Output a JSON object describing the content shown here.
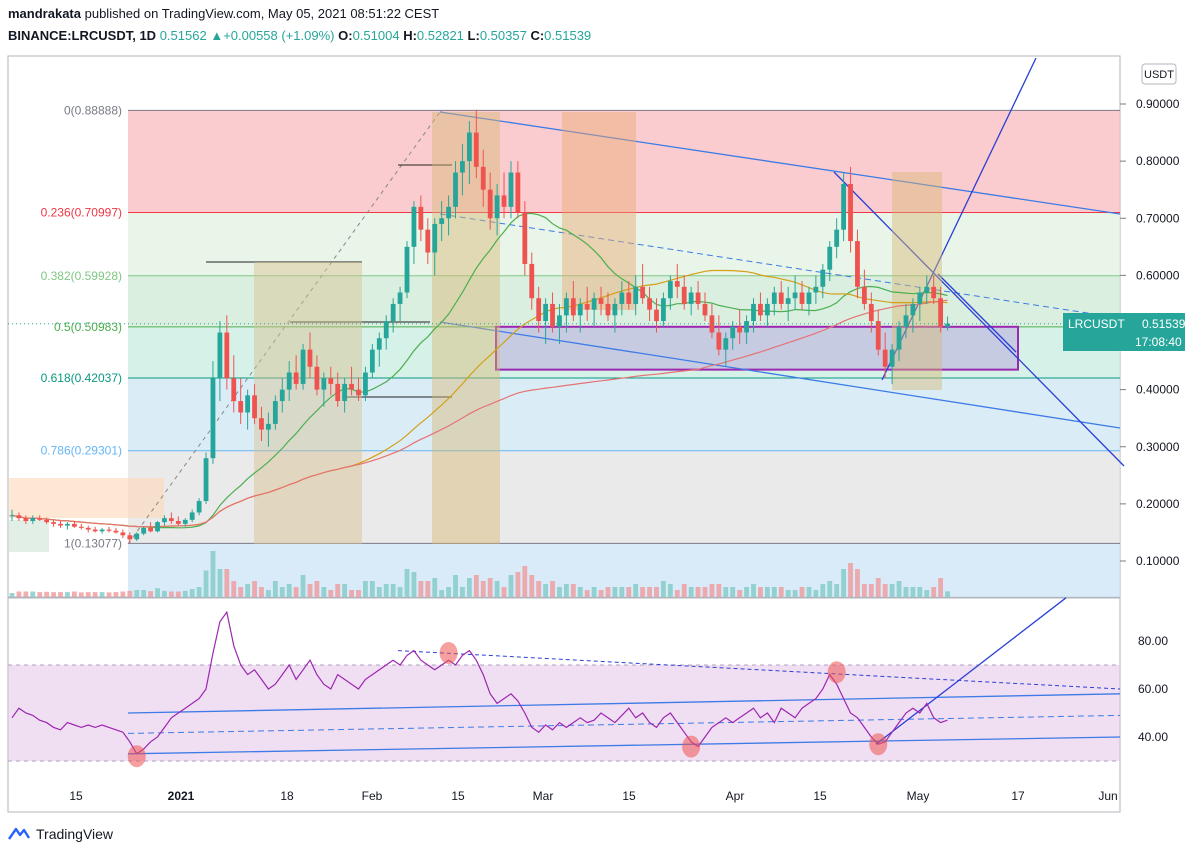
{
  "header": {
    "publisher": "mandrakata",
    "published_text": "published on TradingView.com, May 05, 2021 08:51:22 CEST",
    "symbol": "BINANCE:LRCUSDT, 1D",
    "last": "0.51562",
    "change": "+0.00558 (+1.09%)",
    "o_label": "O:",
    "o_value": "0.51004",
    "h_label": "H:",
    "h_value": "0.52821",
    "l_label": "L:",
    "l_value": "0.50357",
    "c_label": "C:",
    "c_value": "0.51539"
  },
  "price_badge": {
    "symbol": "LRCUSDT",
    "price": "0.51539",
    "countdown": "17:08:40"
  },
  "currency": "USDT",
  "footer": {
    "brand": "TradingView"
  },
  "colors": {
    "up": "#26a69a",
    "down": "#ef5350",
    "fib_red": "#f23645",
    "fib_green": "#4caf50",
    "fib_blue": "#2196f3",
    "rsi": "#9c27b0"
  },
  "chart_data": [
    {
      "type": "candlestick",
      "yaxis_ticks": [
        "0.90000",
        "0.80000",
        "0.70000",
        "0.60000",
        "0.50000",
        "0.40000",
        "0.30000",
        "0.20000",
        "0.10000"
      ],
      "ylim": [
        0.04,
        0.96
      ],
      "xaxis_ticks": [
        "15",
        "2021",
        "18",
        "Feb",
        "15",
        "Mar",
        "15",
        "Apr",
        "15",
        "May",
        "17",
        "Jun"
      ],
      "fib_levels": [
        {
          "ratio": "0",
          "price": 0.88888,
          "label": "0(0.88888)",
          "color": "#787b86"
        },
        {
          "ratio": "0.236",
          "price": 0.70997,
          "label": "0.236(0.70997)",
          "color": "#f23645"
        },
        {
          "ratio": "0.382",
          "price": 0.59928,
          "label": "0.382(0.59928)",
          "color": "#81c784"
        },
        {
          "ratio": "0.5",
          "price": 0.50983,
          "label": "0.5(0.50983)",
          "color": "#4caf50"
        },
        {
          "ratio": "0.618",
          "price": 0.42037,
          "label": "0.618(0.42037)",
          "color": "#089981"
        },
        {
          "ratio": "0.786",
          "price": 0.29301,
          "label": "0.786(0.29301)",
          "color": "#64b5f6"
        },
        {
          "ratio": "1",
          "price": 0.13077,
          "label": "1(0.13077)",
          "color": "#787b86"
        }
      ],
      "candles": [
        [
          0.18,
          0.19,
          0.17,
          0.18
        ],
        [
          0.18,
          0.185,
          0.17,
          0.175
        ],
        [
          0.175,
          0.18,
          0.165,
          0.17
        ],
        [
          0.17,
          0.18,
          0.165,
          0.175
        ],
        [
          0.175,
          0.18,
          0.17,
          0.172
        ],
        [
          0.172,
          0.176,
          0.165,
          0.168
        ],
        [
          0.168,
          0.172,
          0.16,
          0.165
        ],
        [
          0.165,
          0.17,
          0.158,
          0.162
        ],
        [
          0.162,
          0.168,
          0.155,
          0.165
        ],
        [
          0.165,
          0.17,
          0.158,
          0.16
        ],
        [
          0.16,
          0.165,
          0.155,
          0.158
        ],
        [
          0.158,
          0.162,
          0.15,
          0.155
        ],
        [
          0.155,
          0.16,
          0.15,
          0.152
        ],
        [
          0.152,
          0.158,
          0.148,
          0.155
        ],
        [
          0.155,
          0.16,
          0.15,
          0.153
        ],
        [
          0.153,
          0.158,
          0.148,
          0.15
        ],
        [
          0.15,
          0.155,
          0.14,
          0.145
        ],
        [
          0.145,
          0.15,
          0.131,
          0.138
        ],
        [
          0.138,
          0.15,
          0.135,
          0.148
        ],
        [
          0.148,
          0.16,
          0.145,
          0.158
        ],
        [
          0.158,
          0.168,
          0.15,
          0.152
        ],
        [
          0.152,
          0.17,
          0.15,
          0.168
        ],
        [
          0.168,
          0.18,
          0.162,
          0.175
        ],
        [
          0.175,
          0.185,
          0.165,
          0.17
        ],
        [
          0.17,
          0.178,
          0.162,
          0.165
        ],
        [
          0.165,
          0.175,
          0.16,
          0.172
        ],
        [
          0.172,
          0.19,
          0.168,
          0.185
        ],
        [
          0.185,
          0.21,
          0.18,
          0.205
        ],
        [
          0.205,
          0.29,
          0.2,
          0.28
        ],
        [
          0.28,
          0.45,
          0.27,
          0.42
        ],
        [
          0.42,
          0.52,
          0.38,
          0.5
        ],
        [
          0.5,
          0.53,
          0.4,
          0.42
        ],
        [
          0.42,
          0.46,
          0.36,
          0.38
        ],
        [
          0.38,
          0.42,
          0.34,
          0.36
        ],
        [
          0.36,
          0.4,
          0.33,
          0.39
        ],
        [
          0.39,
          0.41,
          0.34,
          0.35
        ],
        [
          0.35,
          0.37,
          0.31,
          0.33
        ],
        [
          0.33,
          0.36,
          0.3,
          0.34
        ],
        [
          0.34,
          0.39,
          0.33,
          0.38
        ],
        [
          0.38,
          0.42,
          0.36,
          0.4
        ],
        [
          0.4,
          0.45,
          0.38,
          0.43
        ],
        [
          0.43,
          0.46,
          0.4,
          0.41
        ],
        [
          0.41,
          0.48,
          0.4,
          0.47
        ],
        [
          0.47,
          0.5,
          0.42,
          0.44
        ],
        [
          0.44,
          0.46,
          0.39,
          0.4
        ],
        [
          0.4,
          0.43,
          0.37,
          0.42
        ],
        [
          0.42,
          0.44,
          0.39,
          0.41
        ],
        [
          0.41,
          0.43,
          0.37,
          0.38
        ],
        [
          0.38,
          0.42,
          0.36,
          0.41
        ],
        [
          0.41,
          0.44,
          0.39,
          0.4
        ],
        [
          0.4,
          0.42,
          0.38,
          0.39
        ],
        [
          0.39,
          0.44,
          0.38,
          0.43
        ],
        [
          0.43,
          0.48,
          0.42,
          0.47
        ],
        [
          0.47,
          0.5,
          0.44,
          0.49
        ],
        [
          0.49,
          0.53,
          0.47,
          0.52
        ],
        [
          0.52,
          0.56,
          0.5,
          0.55
        ],
        [
          0.55,
          0.58,
          0.52,
          0.57
        ],
        [
          0.57,
          0.66,
          0.56,
          0.65
        ],
        [
          0.65,
          0.73,
          0.62,
          0.72
        ],
        [
          0.72,
          0.74,
          0.66,
          0.68
        ],
        [
          0.68,
          0.7,
          0.62,
          0.64
        ],
        [
          0.64,
          0.7,
          0.6,
          0.69
        ],
        [
          0.69,
          0.73,
          0.66,
          0.7
        ],
        [
          0.7,
          0.74,
          0.67,
          0.72
        ],
        [
          0.72,
          0.8,
          0.7,
          0.78
        ],
        [
          0.78,
          0.83,
          0.74,
          0.8
        ],
        [
          0.8,
          0.87,
          0.76,
          0.85
        ],
        [
          0.85,
          0.89,
          0.77,
          0.79
        ],
        [
          0.79,
          0.82,
          0.72,
          0.75
        ],
        [
          0.75,
          0.78,
          0.68,
          0.7
        ],
        [
          0.7,
          0.76,
          0.67,
          0.74
        ],
        [
          0.74,
          0.78,
          0.7,
          0.72
        ],
        [
          0.72,
          0.8,
          0.7,
          0.78
        ],
        [
          0.78,
          0.8,
          0.7,
          0.71
        ],
        [
          0.71,
          0.73,
          0.6,
          0.62
        ],
        [
          0.62,
          0.64,
          0.54,
          0.56
        ],
        [
          0.56,
          0.58,
          0.5,
          0.52
        ],
        [
          0.52,
          0.56,
          0.48,
          0.55
        ],
        [
          0.55,
          0.57,
          0.5,
          0.51
        ],
        [
          0.51,
          0.55,
          0.48,
          0.53
        ],
        [
          0.53,
          0.57,
          0.5,
          0.56
        ],
        [
          0.56,
          0.59,
          0.52,
          0.53
        ],
        [
          0.53,
          0.56,
          0.5,
          0.55
        ],
        [
          0.55,
          0.58,
          0.52,
          0.54
        ],
        [
          0.54,
          0.57,
          0.51,
          0.56
        ],
        [
          0.56,
          0.58,
          0.53,
          0.55
        ],
        [
          0.55,
          0.57,
          0.52,
          0.53
        ],
        [
          0.53,
          0.56,
          0.5,
          0.55
        ],
        [
          0.55,
          0.59,
          0.53,
          0.57
        ],
        [
          0.57,
          0.59,
          0.54,
          0.55
        ],
        [
          0.55,
          0.6,
          0.53,
          0.58
        ],
        [
          0.58,
          0.62,
          0.55,
          0.56
        ],
        [
          0.56,
          0.58,
          0.52,
          0.54
        ],
        [
          0.54,
          0.56,
          0.5,
          0.52
        ],
        [
          0.52,
          0.57,
          0.51,
          0.56
        ],
        [
          0.56,
          0.6,
          0.54,
          0.59
        ],
        [
          0.59,
          0.62,
          0.56,
          0.58
        ],
        [
          0.58,
          0.6,
          0.54,
          0.55
        ],
        [
          0.55,
          0.58,
          0.53,
          0.57
        ],
        [
          0.57,
          0.59,
          0.54,
          0.55
        ],
        [
          0.55,
          0.57,
          0.52,
          0.53
        ],
        [
          0.53,
          0.55,
          0.49,
          0.5
        ],
        [
          0.5,
          0.53,
          0.46,
          0.47
        ],
        [
          0.47,
          0.5,
          0.44,
          0.49
        ],
        [
          0.49,
          0.52,
          0.47,
          0.51
        ],
        [
          0.51,
          0.54,
          0.48,
          0.5
        ],
        [
          0.5,
          0.53,
          0.48,
          0.52
        ],
        [
          0.52,
          0.56,
          0.5,
          0.55
        ],
        [
          0.55,
          0.57,
          0.52,
          0.53
        ],
        [
          0.53,
          0.56,
          0.51,
          0.55
        ],
        [
          0.55,
          0.58,
          0.53,
          0.57
        ],
        [
          0.57,
          0.59,
          0.54,
          0.55
        ],
        [
          0.55,
          0.58,
          0.52,
          0.56
        ],
        [
          0.56,
          0.6,
          0.54,
          0.57
        ],
        [
          0.57,
          0.59,
          0.54,
          0.55
        ],
        [
          0.55,
          0.58,
          0.53,
          0.57
        ],
        [
          0.57,
          0.6,
          0.55,
          0.58
        ],
        [
          0.58,
          0.62,
          0.56,
          0.61
        ],
        [
          0.61,
          0.66,
          0.59,
          0.65
        ],
        [
          0.65,
          0.7,
          0.63,
          0.68
        ],
        [
          0.68,
          0.78,
          0.66,
          0.76
        ],
        [
          0.76,
          0.79,
          0.64,
          0.66
        ],
        [
          0.66,
          0.68,
          0.56,
          0.58
        ],
        [
          0.58,
          0.61,
          0.54,
          0.55
        ],
        [
          0.55,
          0.57,
          0.5,
          0.52
        ],
        [
          0.52,
          0.54,
          0.46,
          0.47
        ],
        [
          0.47,
          0.5,
          0.42,
          0.44
        ],
        [
          0.44,
          0.48,
          0.41,
          0.47
        ],
        [
          0.47,
          0.52,
          0.45,
          0.51
        ],
        [
          0.51,
          0.55,
          0.49,
          0.53
        ],
        [
          0.53,
          0.56,
          0.5,
          0.55
        ],
        [
          0.55,
          0.58,
          0.52,
          0.57
        ],
        [
          0.57,
          0.6,
          0.55,
          0.58
        ],
        [
          0.58,
          0.6,
          0.55,
          0.56
        ],
        [
          0.56,
          0.58,
          0.5,
          0.51
        ],
        [
          0.51,
          0.528,
          0.5036,
          0.5154
        ]
      ],
      "horizontal_box": {
        "top": 0.51,
        "bottom": 0.435,
        "label": ""
      },
      "price_line": 0.51539
    },
    {
      "type": "line",
      "name": "RSI",
      "yaxis_ticks": [
        "80.00",
        "60.00",
        "40.00"
      ],
      "ylim": [
        22,
        98
      ],
      "band": [
        30,
        70
      ],
      "values": [
        48,
        52,
        50,
        49,
        47,
        46,
        44,
        43,
        46,
        45,
        44,
        45,
        44,
        45,
        44,
        43,
        42,
        38,
        33,
        35,
        38,
        40,
        44,
        48,
        50,
        52,
        54,
        56,
        60,
        75,
        88,
        92,
        78,
        70,
        66,
        68,
        64,
        60,
        62,
        66,
        70,
        64,
        68,
        72,
        66,
        62,
        60,
        66,
        64,
        62,
        60,
        64,
        66,
        68,
        70,
        72,
        70,
        74,
        76,
        72,
        70,
        68,
        70,
        72,
        70,
        74,
        76,
        72,
        66,
        58,
        54,
        56,
        58,
        55,
        50,
        44,
        42,
        45,
        43,
        46,
        44,
        46,
        48,
        46,
        47,
        50,
        48,
        46,
        49,
        52,
        48,
        50,
        46,
        44,
        48,
        50,
        46,
        42,
        38,
        36,
        40,
        44,
        46,
        48,
        46,
        48,
        50,
        52,
        48,
        50,
        46,
        52,
        50,
        48,
        52,
        54,
        56,
        60,
        66,
        62,
        56,
        50,
        48,
        44,
        40,
        37,
        38,
        42,
        46,
        50,
        52,
        50,
        54,
        48,
        46,
        47
      ],
      "trend_channel": {
        "upper_start": 50,
        "upper_end": 58,
        "mid_start": 41.5,
        "mid_end": 49,
        "lower_start": 33,
        "lower_end": 40
      }
    }
  ]
}
